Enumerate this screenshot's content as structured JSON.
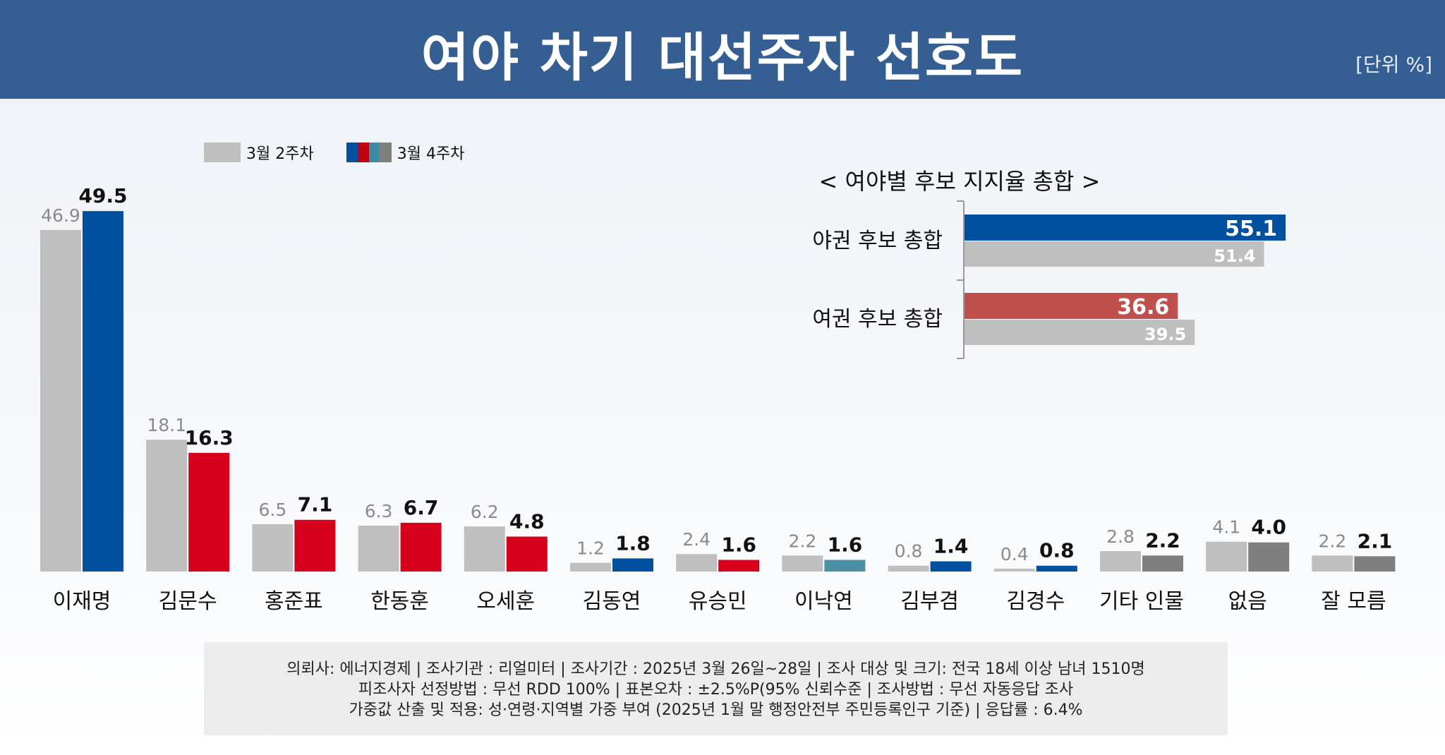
{
  "header": {
    "title": "여야 차기 대선주자 선호도",
    "unit": "[단위 %]"
  },
  "legend": {
    "prev": "3월 2주차",
    "curr": "3월 4주차"
  },
  "colors": {
    "prev": "#bfbfbf",
    "blue": "#0050a0",
    "red": "#d6001c",
    "teal": "#4a8fa3",
    "gray": "#7f7f7f",
    "inset_red": "#c0504d"
  },
  "chart_data": [
    {
      "type": "bar",
      "title": "",
      "xlabel": "",
      "ylabel": "",
      "ylim": [
        0,
        50
      ],
      "grid": false,
      "legend": "top-left",
      "categories": [
        "이재명",
        "김문수",
        "홍준표",
        "한동훈",
        "오세훈",
        "김동연",
        "유승민",
        "이낙연",
        "김부겸",
        "김경수",
        "기타 인물",
        "없음",
        "잘 모름"
      ],
      "series": [
        {
          "name": "3월 2주차",
          "values": [
            46.9,
            18.1,
            6.5,
            6.3,
            6.2,
            1.2,
            2.4,
            2.2,
            0.8,
            0.4,
            2.8,
            4.1,
            2.2
          ]
        },
        {
          "name": "3월 4주차",
          "values": [
            49.5,
            16.3,
            7.1,
            6.7,
            4.8,
            1.8,
            1.6,
            1.6,
            1.4,
            0.8,
            2.2,
            4.0,
            2.1
          ],
          "bar_colors": [
            "blue",
            "red",
            "red",
            "red",
            "red",
            "blue",
            "red",
            "teal",
            "blue",
            "blue",
            "gray",
            "gray",
            "gray"
          ]
        }
      ],
      "labels_prev": [
        "46.9",
        "18.1",
        "6.5",
        "6.3",
        "6.2",
        "1.2",
        "2.4",
        "2.2",
        "0.8",
        "0.4",
        "2.8",
        "4.1",
        "2.2"
      ],
      "labels_curr": [
        "49.5",
        "16.3",
        "7.1",
        "6.7",
        "4.8",
        "1.8",
        "1.6",
        "1.6",
        "1.4",
        "0.8",
        "2.2",
        "4.0",
        "2.1"
      ]
    },
    {
      "type": "bar",
      "orientation": "horizontal",
      "title": "< 여야별 후보 지지율 총합 >",
      "categories": [
        "야권 후보 총합",
        "여권 후보 총합"
      ],
      "series": [
        {
          "name": "3월 4주차",
          "values": [
            55.1,
            36.6
          ],
          "labels": [
            "55.1",
            "36.6"
          ],
          "bar_colors": [
            "blue",
            "inset_red"
          ]
        },
        {
          "name": "3월 2주차",
          "values": [
            51.4,
            39.5
          ],
          "labels": [
            "51.4",
            "39.5"
          ]
        }
      ]
    }
  ],
  "footnote": [
    "의뢰사: 에너지경제 | 조사기관 : 리얼미터  |  조사기간 : 2025년 3월 26일~28일 | 조사 대상 및 크기: 전국 18세 이상 남녀 1510명",
    "피조사자 선정방법 : 무선 RDD 100% | 표본오차 : ±2.5%P(95% 신뢰수준 | 조사방법 : 무선 자동응답 조사",
    "가중값 산출 및 적용: 성·연령·지역별 가중 부여 (2025년 1월 말 행정안전부 주민등록인구 기준) | 응답률 : 6.4%"
  ]
}
